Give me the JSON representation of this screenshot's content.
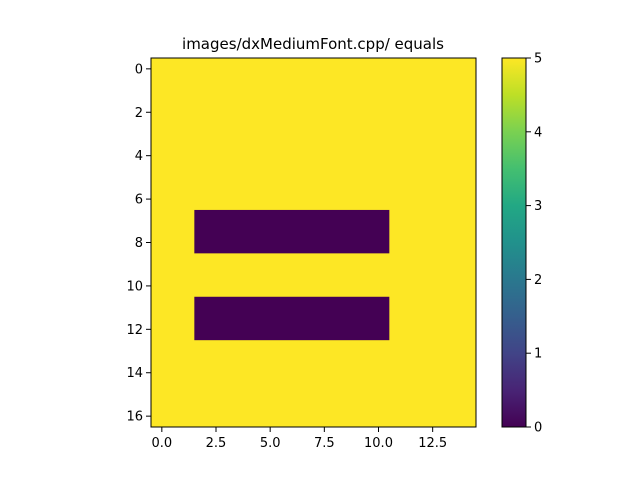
{
  "chart_data": {
    "type": "heatmap",
    "title": "images/dxMediumFont.cpp/ equals",
    "rows": 17,
    "cols": 15,
    "background_value": 5,
    "blocks": [
      {
        "row_start": 7,
        "row_end": 8,
        "col_start": 2,
        "col_end": 10,
        "value": 0
      },
      {
        "row_start": 11,
        "row_end": 12,
        "col_start": 2,
        "col_end": 10,
        "value": 0
      }
    ],
    "x_ticks": [
      0.0,
      2.5,
      5.0,
      7.5,
      10.0,
      12.5
    ],
    "x_tick_labels": [
      "0.0",
      "2.5",
      "5.0",
      "7.5",
      "10.0",
      "12.5"
    ],
    "y_ticks": [
      0,
      2,
      4,
      6,
      8,
      10,
      12,
      14,
      16
    ],
    "y_tick_labels": [
      "0",
      "2",
      "4",
      "6",
      "8",
      "10",
      "12",
      "14",
      "16"
    ],
    "xlim": [
      -0.5,
      14.5
    ],
    "ylim": [
      16.5,
      -0.5
    ],
    "colorbar": {
      "min": 0,
      "max": 5,
      "ticks": [
        0,
        1,
        2,
        3,
        4,
        5
      ],
      "tick_labels": [
        "0",
        "1",
        "2",
        "3",
        "4",
        "5"
      ],
      "colormap": "viridis"
    },
    "colors": {
      "low": "#440154",
      "high": "#fde725"
    },
    "grid": false
  }
}
